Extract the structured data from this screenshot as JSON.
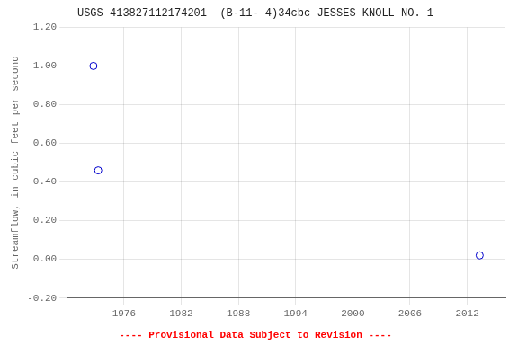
{
  "chart_data": {
    "type": "scatter",
    "title": "USGS 413827112174201  (B-11- 4)34cbc JESSES KNOLL NO. 1",
    "y_label": "Streamflow, in cubic feet per second",
    "x": [
      1972.8,
      1973.3,
      2013.3
    ],
    "values": [
      1.0,
      0.46,
      0.02
    ],
    "color": "#0000cc",
    "marker": "circle",
    "line_style": "none",
    "xlim": [
      1970,
      2016
    ],
    "ylim": [
      -0.2,
      1.2
    ],
    "xticks": [
      1976,
      1982,
      1988,
      1994,
      2000,
      2006,
      2012
    ],
    "yticks": [
      {
        "value": -0.2,
        "label": "-0.20"
      },
      {
        "value": 0,
        "label": "0.00"
      },
      {
        "value": 0.2,
        "label": "0.20"
      },
      {
        "value": 0.4,
        "label": "0.40"
      },
      {
        "value": 0.6,
        "label": "0.60"
      },
      {
        "value": 0.8,
        "label": "0.80"
      },
      {
        "value": 1,
        "label": "1.00"
      },
      {
        "value": 1.2,
        "label": "1.20"
      }
    ],
    "grid": true,
    "annotations": [
      {
        "text": "---- Provisional Data Subject to Revision ----",
        "color": "#ff0000"
      }
    ]
  }
}
